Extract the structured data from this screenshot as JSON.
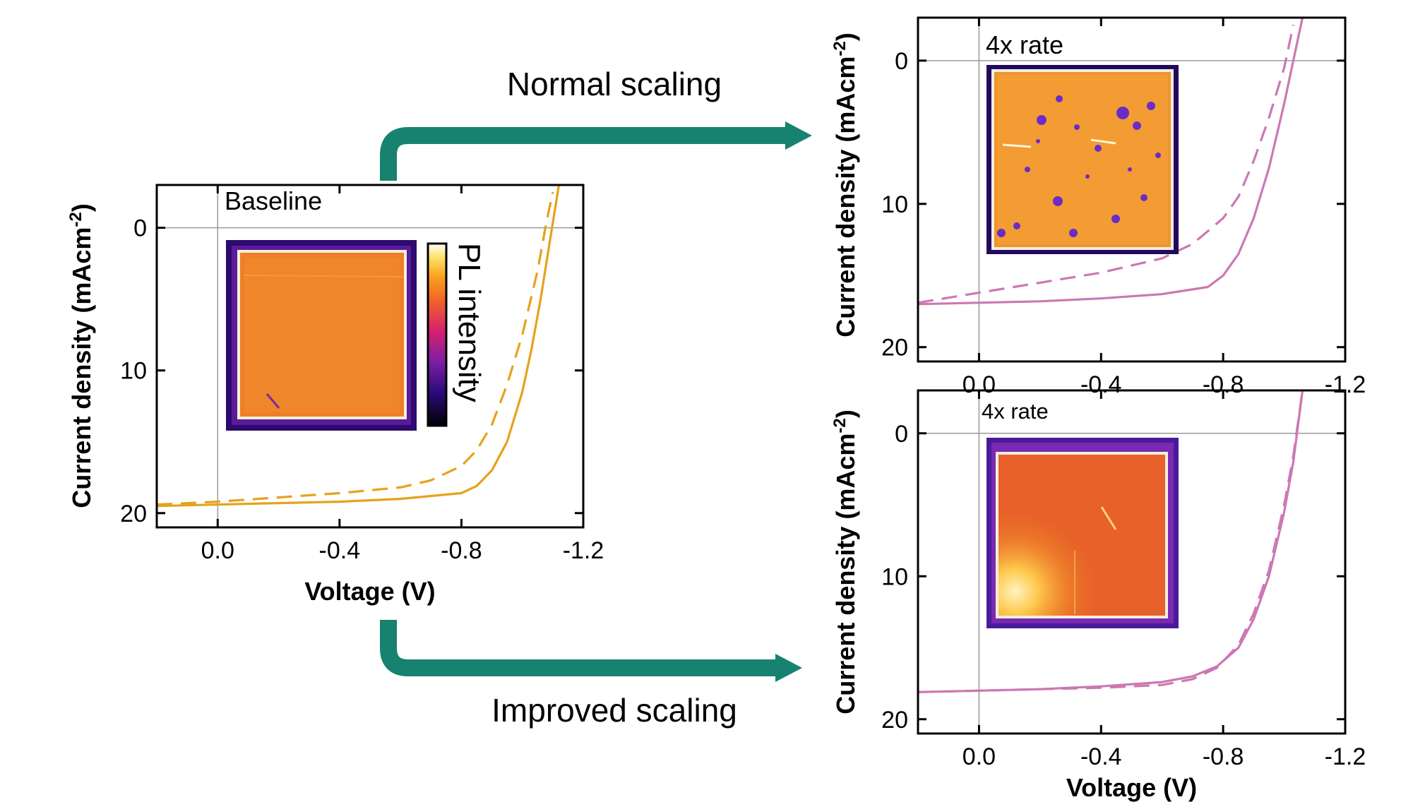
{
  "arrows": {
    "top_label": "Normal scaling",
    "bottom_label": "Improved scaling",
    "color": "#17826f"
  },
  "colorbar": {
    "label": "PL intensity"
  },
  "chart_data": [
    {
      "type": "line",
      "id": "baseline",
      "label": "Baseline",
      "color": "#e5a21b",
      "xlabel": "Voltage (V)",
      "ylabel": "Current density (mAcm-2)",
      "xlim": [
        0.2,
        -1.2
      ],
      "ylim": [
        -3,
        21
      ],
      "x_ticks": [
        "0.0",
        "-0.4",
        "-0.8",
        "-1.2"
      ],
      "y_ticks": [
        "0",
        "10",
        "20"
      ],
      "series": [
        {
          "style": "solid",
          "x": [
            0.2,
            0.0,
            -0.2,
            -0.4,
            -0.6,
            -0.8,
            -0.85,
            -0.9,
            -0.95,
            -1.0,
            -1.03,
            -1.06,
            -1.09,
            -1.12
          ],
          "y": [
            19.5,
            19.4,
            19.3,
            19.2,
            19.0,
            18.6,
            18.1,
            17.0,
            15.0,
            11.5,
            8.5,
            5.0,
            1.0,
            -3.0
          ]
        },
        {
          "style": "dashed",
          "x": [
            0.2,
            0.0,
            -0.2,
            -0.4,
            -0.6,
            -0.7,
            -0.8,
            -0.85,
            -0.9,
            -0.95,
            -1.0,
            -1.05,
            -1.08,
            -1.1
          ],
          "y": [
            19.4,
            19.2,
            18.9,
            18.6,
            18.2,
            17.7,
            16.7,
            15.6,
            13.8,
            11.0,
            7.5,
            3.0,
            -0.5,
            -2.5
          ]
        }
      ]
    },
    {
      "type": "line",
      "id": "normal",
      "label": "4x rate",
      "color": "#cc78b3",
      "xlabel": "",
      "ylabel": "Current density (mAcm-2)",
      "xlim": [
        0.2,
        -1.2
      ],
      "ylim": [
        -3,
        21
      ],
      "x_ticks": [
        "0.0",
        "-0.4",
        "-0.8",
        "-1.2"
      ],
      "y_ticks": [
        "0",
        "10",
        "20"
      ],
      "series": [
        {
          "style": "solid",
          "x": [
            0.2,
            0.0,
            -0.2,
            -0.4,
            -0.6,
            -0.75,
            -0.8,
            -0.85,
            -0.9,
            -0.95,
            -1.0,
            -1.03,
            -1.06
          ],
          "y": [
            17.0,
            16.9,
            16.8,
            16.6,
            16.3,
            15.8,
            15.0,
            13.5,
            11.0,
            7.5,
            3.0,
            0.0,
            -3.0
          ]
        },
        {
          "style": "dashed",
          "x": [
            0.2,
            0.0,
            -0.2,
            -0.4,
            -0.6,
            -0.7,
            -0.8,
            -0.85,
            -0.9,
            -0.95,
            -1.0,
            -1.03
          ],
          "y": [
            16.9,
            16.2,
            15.5,
            14.8,
            13.8,
            12.8,
            11.0,
            9.5,
            7.0,
            4.0,
            0.5,
            -2.5
          ]
        }
      ]
    },
    {
      "type": "line",
      "id": "improved",
      "label": "4x rate",
      "color": "#cc78b3",
      "xlabel": "Voltage (V)",
      "ylabel": "Current density (mAcm-2)",
      "xlim": [
        0.2,
        -1.2
      ],
      "ylim": [
        -3,
        21
      ],
      "x_ticks": [
        "0.0",
        "-0.4",
        "-0.8",
        "-1.2"
      ],
      "y_ticks": [
        "0",
        "10",
        "20"
      ],
      "series": [
        {
          "style": "solid",
          "x": [
            0.2,
            0.0,
            -0.2,
            -0.4,
            -0.6,
            -0.7,
            -0.78,
            -0.85,
            -0.9,
            -0.95,
            -1.0,
            -1.03,
            -1.06
          ],
          "y": [
            18.1,
            18.0,
            17.9,
            17.7,
            17.4,
            17.0,
            16.3,
            15.0,
            13.0,
            10.0,
            5.5,
            2.0,
            -3.0
          ]
        },
        {
          "style": "dashed",
          "x": [
            0.2,
            0.0,
            -0.2,
            -0.4,
            -0.6,
            -0.7,
            -0.78,
            -0.85,
            -0.9,
            -0.95,
            -1.0,
            -1.03,
            -1.06
          ],
          "y": [
            18.1,
            18.0,
            17.9,
            17.8,
            17.6,
            17.2,
            16.4,
            14.8,
            12.6,
            9.6,
            5.0,
            1.6,
            -3.0
          ]
        }
      ]
    }
  ]
}
